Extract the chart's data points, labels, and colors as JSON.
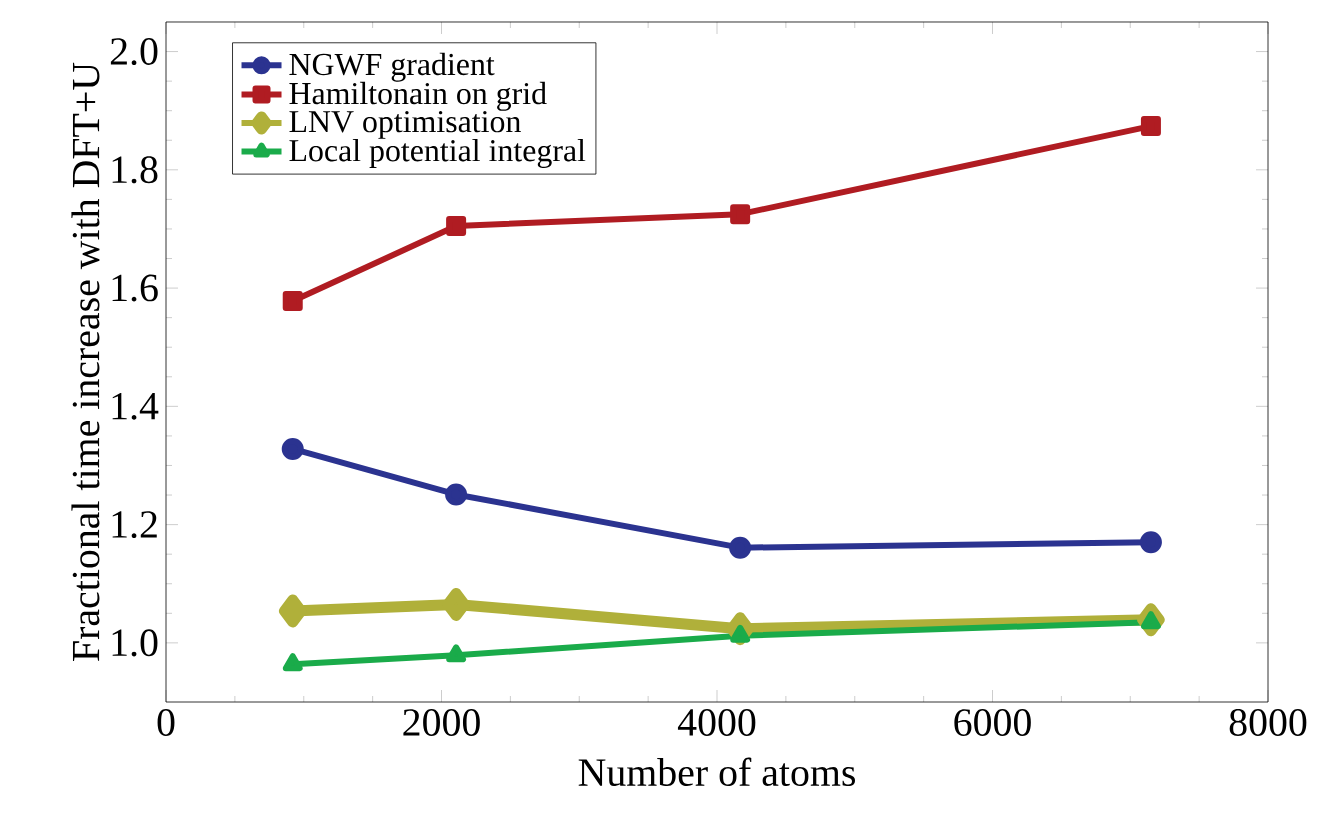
{
  "chart_data": {
    "type": "line",
    "xlabel": "Number of atoms",
    "ylabel": "Fractional time increase with DFT+U",
    "xlim": [
      0,
      8000
    ],
    "xticks": [
      0,
      2000,
      4000,
      6000,
      8000
    ],
    "ylim": [
      0.9,
      2.05
    ],
    "yticks": [
      {
        "value": 1.0,
        "label": "1.0"
      },
      {
        "value": 1.2,
        "label": "1.2"
      },
      {
        "value": 1.4,
        "label": "1.4"
      },
      {
        "value": 1.6,
        "label": "1.6"
      },
      {
        "value": 1.8,
        "label": "1.8"
      },
      {
        "value": 2.0,
        "label": "2.0"
      }
    ],
    "x": [
      920,
      2106,
      4168,
      7150
    ],
    "legend": "top left",
    "grid": false,
    "line_style": "solid",
    "series": [
      {
        "name": "NGWF gradient",
        "color": "#2b3390",
        "marker": "circle",
        "values": [
          1.328,
          1.251,
          1.161,
          1.17
        ]
      },
      {
        "name": "Hamiltonain on grid",
        "color": "#b01c22",
        "marker": "square",
        "values": [
          1.578,
          1.705,
          1.725,
          1.874
        ]
      },
      {
        "name": "LNV optimisation",
        "color": "#b0b03a",
        "marker": "diamond",
        "values": [
          1.054,
          1.065,
          1.024,
          1.039
        ]
      },
      {
        "name": "Local potential integral",
        "color": "#1aab4a",
        "marker": "triangle",
        "values": [
          0.964,
          0.979,
          1.012,
          1.035
        ]
      }
    ]
  }
}
